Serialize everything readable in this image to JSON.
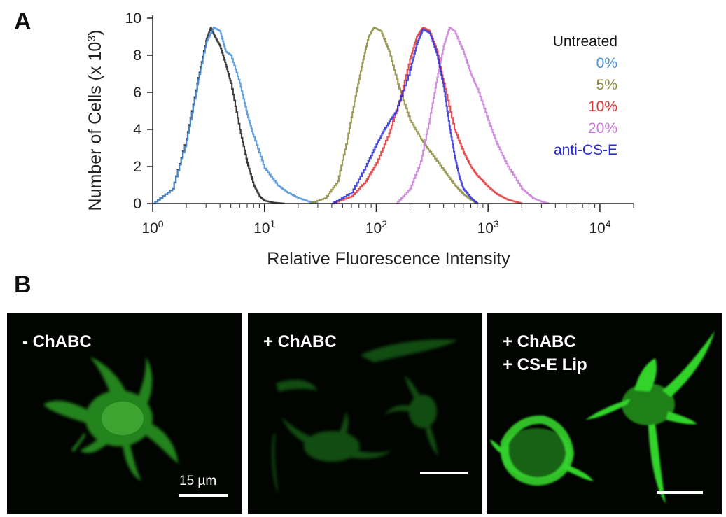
{
  "panels": {
    "a_label": "A",
    "b_label": "B"
  },
  "chart_data": {
    "type": "line",
    "xlabel": "Relative Fluorescence Intensity",
    "ylabel": "Number of Cells (x 10",
    "ylabel_exp": "3",
    "ylabel_close": ")",
    "x_scale": "log",
    "xlim": [
      1,
      20000
    ],
    "ylim": [
      0,
      10
    ],
    "x_ticks": [
      1,
      10,
      100,
      1000,
      10000
    ],
    "x_tick_labels": [
      {
        "base": "10",
        "exp": "0"
      },
      {
        "base": "10",
        "exp": "1"
      },
      {
        "base": "10",
        "exp": "2"
      },
      {
        "base": "10",
        "exp": "3"
      },
      {
        "base": "10",
        "exp": "4"
      }
    ],
    "y_ticks": [
      0,
      2,
      4,
      6,
      8,
      10
    ],
    "y_tick_labels": [
      "0",
      "2",
      "4",
      "6",
      "8",
      "10"
    ],
    "grid": false,
    "legend_position": "top-right",
    "series": [
      {
        "name": "Untreated",
        "color": "#1a1a1a",
        "x": [
          1.0,
          1.5,
          2.0,
          2.5,
          3.0,
          3.3,
          3.6,
          4.0,
          4.5,
          5.0,
          6.0,
          7.0,
          8.0,
          9.0,
          10.0,
          12.0,
          15.0
        ],
        "y": [
          0.0,
          0.8,
          3.5,
          6.5,
          8.8,
          9.5,
          9.0,
          8.5,
          7.5,
          6.5,
          4.0,
          2.2,
          1.0,
          0.4,
          0.15,
          0.05,
          0.0
        ]
      },
      {
        "name": "0%",
        "color": "#4a90d9",
        "x": [
          1.0,
          1.5,
          2.0,
          2.5,
          3.0,
          3.5,
          4.0,
          4.5,
          5.0,
          6.0,
          7.0,
          8.0,
          10.0,
          13.0,
          16.0,
          20.0,
          25.0,
          30.0
        ],
        "y": [
          0.0,
          0.8,
          3.4,
          6.4,
          8.7,
          9.5,
          9.3,
          8.2,
          8.0,
          6.5,
          4.8,
          3.6,
          1.9,
          1.0,
          0.6,
          0.3,
          0.1,
          0.0
        ]
      },
      {
        "name": "5%",
        "color": "#8a8a3a",
        "x": [
          25.0,
          35.0,
          45.0,
          55.0,
          65.0,
          75.0,
          85.0,
          95.0,
          110.0,
          130.0,
          160.0,
          200.0,
          250.0,
          300.0,
          400.0,
          500.0,
          600.0,
          700.0,
          800.0
        ],
        "y": [
          0.0,
          0.3,
          1.2,
          3.5,
          5.8,
          7.6,
          9.0,
          9.5,
          9.3,
          8.2,
          6.2,
          4.5,
          3.5,
          2.8,
          1.8,
          1.0,
          0.5,
          0.2,
          0.0
        ]
      },
      {
        "name": "10%",
        "color": "#e03030",
        "x": [
          40.0,
          60.0,
          80.0,
          100.0,
          130.0,
          160.0,
          200.0,
          230.0,
          260.0,
          300.0,
          350.0,
          400.0,
          500.0,
          600.0,
          700.0,
          800.0,
          1000.0,
          1200.0,
          1500.0,
          2000.0
        ],
        "y": [
          0.0,
          0.4,
          1.2,
          2.2,
          3.8,
          5.5,
          7.8,
          9.0,
          9.5,
          9.3,
          8.2,
          6.5,
          4.0,
          2.8,
          2.0,
          1.5,
          0.9,
          0.5,
          0.2,
          0.0
        ]
      },
      {
        "name": "20%",
        "color": "#c87ad8",
        "x": [
          150.0,
          200.0,
          250.0,
          300.0,
          350.0,
          400.0,
          450.0,
          500.0,
          600.0,
          700.0,
          800.0,
          1000.0,
          1200.0,
          1500.0,
          2000.0,
          2500.0,
          3000.0,
          3500.0
        ],
        "y": [
          0.0,
          0.8,
          2.3,
          4.6,
          6.8,
          8.5,
          9.5,
          9.3,
          8.2,
          7.0,
          6.2,
          4.5,
          3.2,
          2.0,
          0.8,
          0.3,
          0.1,
          0.0
        ]
      },
      {
        "name": "anti-CS-E",
        "color": "#2a2ad8",
        "x": [
          40.0,
          60.0,
          80.0,
          100.0,
          120.0,
          150.0,
          200.0,
          230.0,
          260.0,
          300.0,
          350.0,
          400.0,
          450.0,
          500.0,
          550.0,
          600.0,
          700.0,
          800.0
        ],
        "y": [
          0.0,
          0.6,
          2.0,
          3.2,
          4.1,
          5.0,
          7.2,
          8.6,
          9.4,
          9.2,
          8.0,
          6.3,
          4.2,
          2.6,
          1.5,
          0.8,
          0.3,
          0.0
        ]
      }
    ]
  },
  "micrographs": [
    {
      "label_lines": [
        "- ChABC"
      ],
      "scale_text": "15 µm"
    },
    {
      "label_lines": [
        "+ ChABC"
      ],
      "scale_text": ""
    },
    {
      "label_lines": [
        "+ ChABC",
        "+ CS-E Lip"
      ],
      "scale_text": ""
    }
  ]
}
